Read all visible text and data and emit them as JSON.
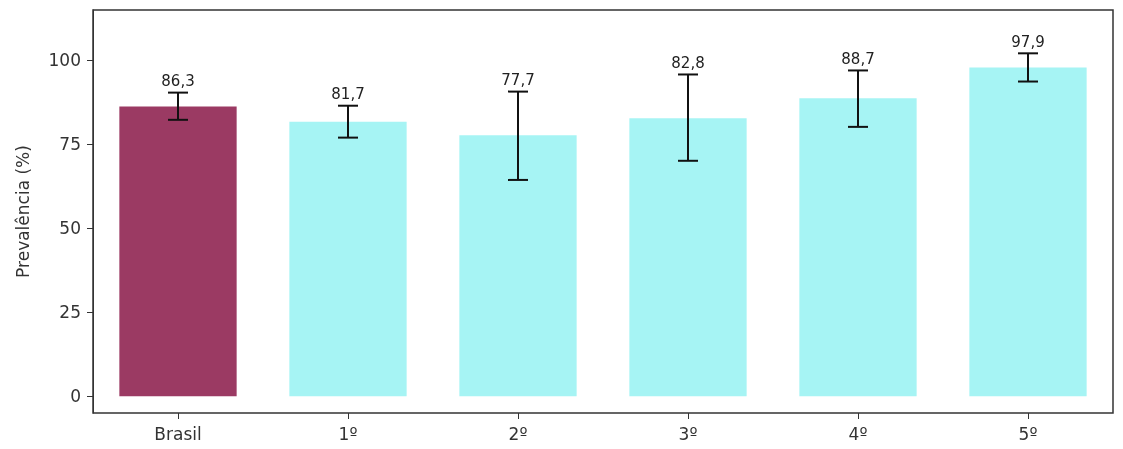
{
  "chart_data": {
    "type": "bar",
    "ylabel": "Prevalência (%)",
    "categories": [
      "Brasil",
      "1º",
      "2º",
      "3º",
      "4º",
      "5º"
    ],
    "values": [
      86.3,
      81.7,
      77.7,
      82.8,
      88.7,
      97.9
    ],
    "colors": [
      "#9b3a63",
      "#a6f4f4",
      "#a6f4f4",
      "#a6f4f4",
      "#a6f4f4",
      "#a6f4f4"
    ],
    "errors": [
      [
        82.3,
        90.4
      ],
      [
        77.0,
        86.5
      ],
      [
        64.4,
        90.7
      ],
      [
        70.1,
        95.8
      ],
      [
        80.2,
        97.0
      ],
      [
        93.7,
        102.1
      ]
    ],
    "value_labels": [
      "86,3",
      "81,7",
      "77,7",
      "82,8",
      "88,7",
      "97,9"
    ],
    "ylim": [
      -5,
      115
    ],
    "yticks": [
      0,
      25,
      50,
      75,
      100
    ]
  }
}
